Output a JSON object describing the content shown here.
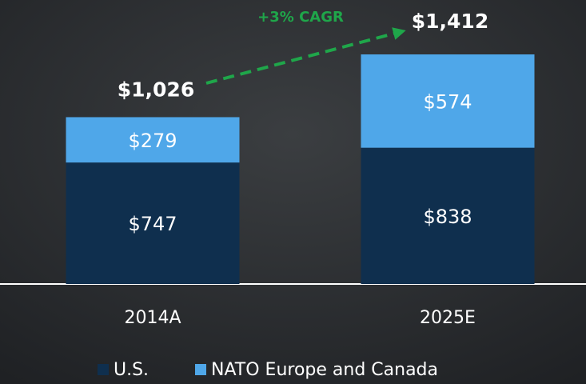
{
  "chart_data": {
    "type": "stacked-bar",
    "categories": [
      "2014A",
      "2025E"
    ],
    "series": [
      {
        "name": "U.S.",
        "color": "#0f2f4e",
        "values": [
          747,
          838
        ],
        "value_labels": [
          "$747",
          "$838"
        ]
      },
      {
        "name": "NATO Europe and Canada",
        "color": "#4fa7e9",
        "values": [
          279,
          574
        ],
        "value_labels": [
          "$279",
          "$574"
        ]
      }
    ],
    "totals": [
      1026,
      1412
    ],
    "total_labels": [
      "$1,026",
      "$1,412"
    ],
    "annotation": "+3% CAGR",
    "annotation_color": "#1fa64a"
  }
}
